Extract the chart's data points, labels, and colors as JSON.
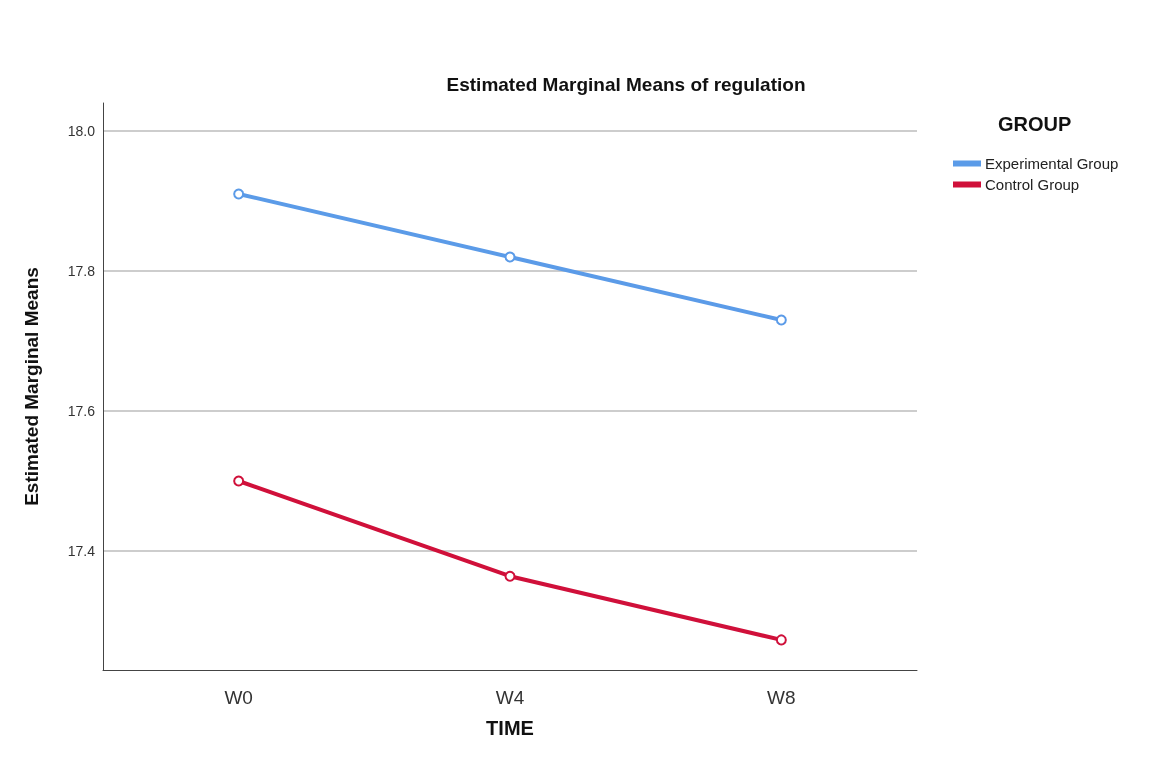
{
  "chart_data": {
    "type": "line",
    "title": "Estimated Marginal Means of regulation",
    "xlabel": "TIME",
    "ylabel": "Estimated Marginal Means",
    "legend_title": "GROUP",
    "categories": [
      "W0",
      "W4",
      "W8"
    ],
    "series": [
      {
        "name": "Experimental Group",
        "color": "#5b9be8",
        "values": [
          17.91,
          17.82,
          17.73
        ]
      },
      {
        "name": "Control Group",
        "color": "#d0103a",
        "values": [
          17.5,
          17.364,
          17.273
        ]
      }
    ],
    "ylim": [
      17.23,
      18.04
    ],
    "yticks": [
      17.4,
      17.6,
      17.8,
      {
        "value": 18,
        "label": "18.0"
      }
    ],
    "grid": "y",
    "legend": "top right",
    "marker": "circle",
    "line_style": "solid"
  }
}
